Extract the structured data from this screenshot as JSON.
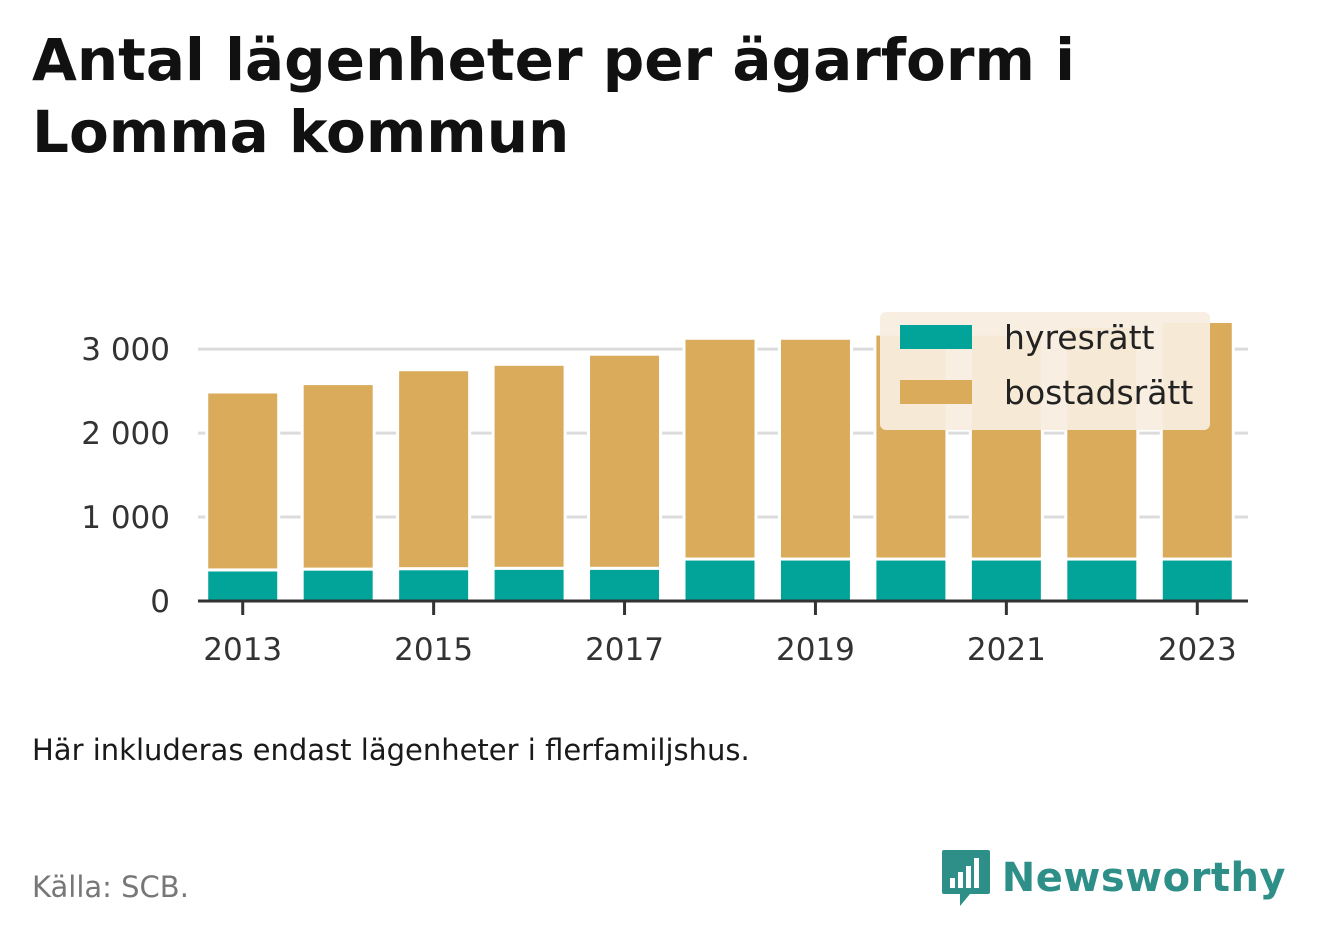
{
  "title": "Antal lägenheter per ägarform i Lomma kommun",
  "note": "Här inkluderas endast lägenheter i flerfamiljshus.",
  "source": "Källa: SCB.",
  "brand": "Newsworthy",
  "colors": {
    "hyresratt": "#02a49a",
    "bostadsratt": "#d9ab5b",
    "grid": "#dcdcdc",
    "axis": "#333333",
    "legend_bg": "#f8eee0",
    "brand": "#2e8f88"
  },
  "chart_data": {
    "type": "bar",
    "stacked": true,
    "x": [
      2013,
      2014,
      2015,
      2016,
      2017,
      2018,
      2019,
      2020,
      2021,
      2022,
      2023
    ],
    "x_tick_labels": [
      "2013",
      "2015",
      "2017",
      "2019",
      "2021",
      "2023"
    ],
    "y_ticks": [
      0,
      1000,
      2000,
      3000
    ],
    "y_tick_labels": [
      "0",
      "1 000",
      "2 000",
      "3 000"
    ],
    "ylim": [
      0,
      3300
    ],
    "grid": true,
    "legend_position": "top-right",
    "series": [
      {
        "name": "hyresrätt",
        "color": "#02a49a",
        "values": [
          370,
          380,
          385,
          390,
          390,
          500,
          500,
          500,
          500,
          500,
          500
        ]
      },
      {
        "name": "bostadsrätt",
        "color": "#d9ab5b",
        "values": [
          2120,
          2210,
          2370,
          2430,
          2550,
          2630,
          2630,
          2680,
          2680,
          2770,
          2830
        ]
      }
    ]
  }
}
